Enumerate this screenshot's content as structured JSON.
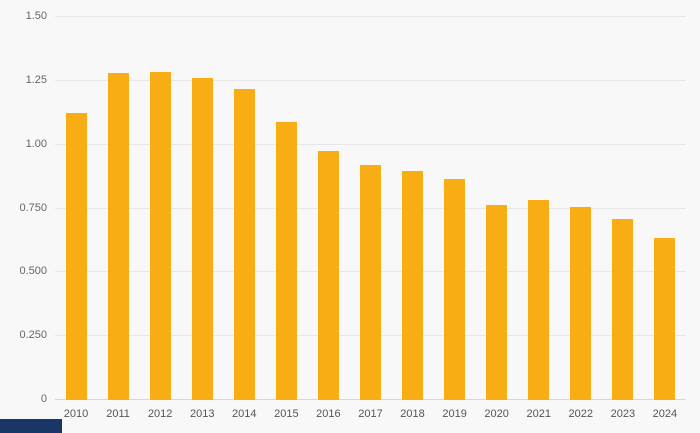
{
  "chart_data": {
    "type": "bar",
    "title": "",
    "xlabel": "",
    "ylabel": "",
    "categories": [
      "2010",
      "2011",
      "2012",
      "2013",
      "2014",
      "2015",
      "2016",
      "2017",
      "2018",
      "2019",
      "2020",
      "2021",
      "2022",
      "2023",
      "2024"
    ],
    "values": [
      1.125,
      1.28,
      1.285,
      1.26,
      1.22,
      1.09,
      0.975,
      0.92,
      0.895,
      0.865,
      0.765,
      0.785,
      0.755,
      0.71,
      0.635
    ],
    "ylim": [
      0,
      1.5
    ],
    "yticks": [
      {
        "value": 0,
        "label": "0"
      },
      {
        "value": 0.25,
        "label": "0.250"
      },
      {
        "value": 0.5,
        "label": "0.500"
      },
      {
        "value": 0.75,
        "label": "0.750"
      },
      {
        "value": 1.0,
        "label": "1.00"
      },
      {
        "value": 1.25,
        "label": "1.25"
      },
      {
        "value": 1.5,
        "label": "1.50"
      }
    ],
    "grid": true,
    "legend": false,
    "bar_color": "#f9ad14",
    "background_color": "#f8f8f8"
  },
  "watermark": {
    "color": "#1a3667"
  }
}
